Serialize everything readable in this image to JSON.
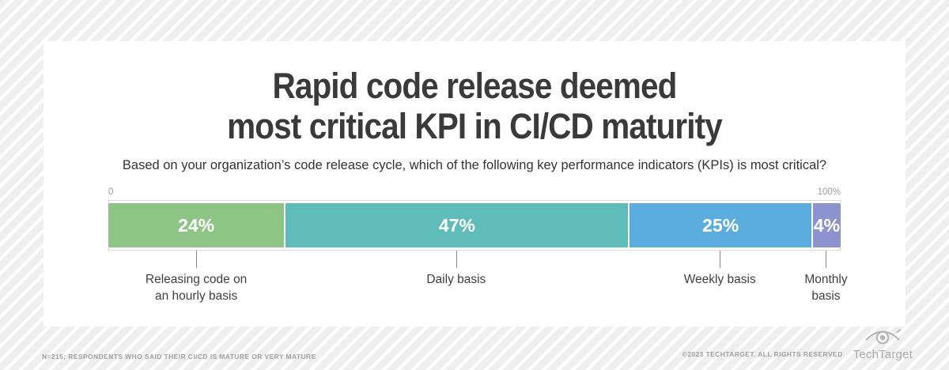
{
  "card": {
    "title_line1": "Rapid code release deemed",
    "title_line2": "most critical KPI in CI/CD maturity",
    "subtitle": "Based on your organization’s code release cycle, which of the following key performance indicators (KPIs) is most critical?"
  },
  "chart_data": {
    "type": "bar",
    "variant": "horizontal-stacked",
    "title": "Rapid code release deemed most critical KPI in CI/CD maturity",
    "question": "Based on your organization’s code release cycle, which of the following key performance indicators (KPIs) is most critical?",
    "axis": {
      "min": 0,
      "max": 100,
      "min_label": "0",
      "max_label": "100%"
    },
    "segments": [
      {
        "label": "Releasing code on an hourly basis",
        "value": 24,
        "display": "24%",
        "color": "#8fc487"
      },
      {
        "label": "Daily basis",
        "value": 47,
        "display": "47%",
        "color": "#5fbcb8"
      },
      {
        "label": "Weekly basis",
        "value": 25,
        "display": "25%",
        "color": "#5badde"
      },
      {
        "label": "Monthly basis",
        "value": 4,
        "display": "4%",
        "color": "#8d93ce"
      }
    ]
  },
  "footer": {
    "note": "N=215; RESPONDENTS WHO SAID THEIR CI/CD IS MATURE OR VERY MATURE",
    "copyright": "©2023 TECHTARGET. ALL RIGHTS RESERVED",
    "logo_text": "TechTarget"
  }
}
